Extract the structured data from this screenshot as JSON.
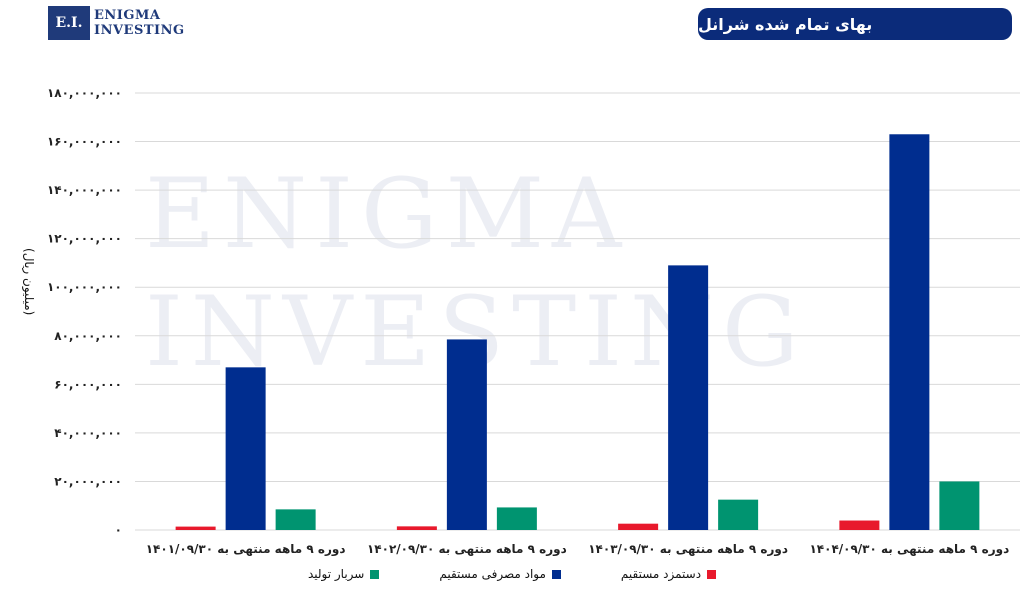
{
  "logo": {
    "initials": "E.I.",
    "line1": "Enigma",
    "line2": "Investing",
    "watermark1": "Enigma",
    "watermark2": "Investing"
  },
  "header": {
    "title": "بهای تمام شده شرانل"
  },
  "chart_data": {
    "type": "bar",
    "title": "بهای تمام شده شرانل",
    "ylabel": "(میلیون ریال)",
    "ylim": [
      0,
      180000000
    ],
    "yticks": [
      0,
      20000000,
      40000000,
      60000000,
      80000000,
      100000000,
      120000000,
      140000000,
      160000000,
      180000000
    ],
    "ytick_labels": [
      "۰",
      "۲۰,۰۰۰,۰۰۰",
      "۴۰,۰۰۰,۰۰۰",
      "۶۰,۰۰۰,۰۰۰",
      "۸۰,۰۰۰,۰۰۰",
      "۱۰۰,۰۰۰,۰۰۰",
      "۱۲۰,۰۰۰,۰۰۰",
      "۱۴۰,۰۰۰,۰۰۰",
      "۱۶۰,۰۰۰,۰۰۰",
      "۱۸۰,۰۰۰,۰۰۰"
    ],
    "grid": true,
    "legend_position": "bottom",
    "categories": [
      "دوره ۹ ماهه منتهی به ۱۴۰۱/۰۹/۳۰",
      "دوره ۹ ماهه منتهی به ۱۴۰۲/۰۹/۳۰",
      "دوره ۹ ماهه منتهی به ۱۴۰۳/۰۹/۳۰",
      "دوره ۹ ماهه منتهی به ۱۴۰۴/۰۹/۳۰"
    ],
    "series": [
      {
        "name": "دستمزد مستقیم",
        "color": "#e8192c",
        "values": [
          1400000,
          1500000,
          2600000,
          3900000
        ]
      },
      {
        "name": "مواد مصرفی مستقیم",
        "color": "#002d8f",
        "values": [
          67000000,
          78500000,
          109000000,
          163000000
        ]
      },
      {
        "name": "سربار تولید",
        "color": "#009470",
        "values": [
          8500000,
          9300000,
          12500000,
          20000000
        ]
      }
    ]
  }
}
